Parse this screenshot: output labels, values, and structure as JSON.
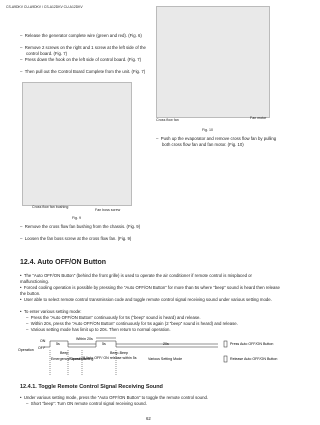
{
  "header": {
    "model": "CS-A9DKV CU-A9DKV / CS-A12DKV CU-A12DKV"
  },
  "steps_top": [
    "Release the generator complete wire (green and red). (Fig. 6)",
    "Remove 2 screws on the right and 1 screw at the left side of the control board. (Fig. 7)",
    "Press down the hook on the left side of control board. (Fig. 7)",
    "Then pull out the Control Board Complete from the unit. (Fig. 7)"
  ],
  "fig10": {
    "labels": [
      "Cross flow fan",
      "Fan motor"
    ],
    "caption": "Fig. 10",
    "step": "Push up the evaporator and remove cross flow fan by pulling both cross flow fan and fan motor. (Fig. 10)"
  },
  "fig9": {
    "labels": [
      "Cross flow fan bushing",
      "Fan boss screw"
    ],
    "caption": "Fig. 9",
    "steps": [
      "Remove the cross flow fan bushing from the chassis. (Fig. 9)",
      "Loosen the fan boss screw at the cross flow fan. (Fig. 9)"
    ]
  },
  "section": {
    "title": "12.4.   Auto OFF/ON Button",
    "bullets": [
      "The “Auto OFF/ON Button” (behind the front grille) is used to operate the air conditioner if remote control is misplaced or malfunctioning.",
      "Forced cooling operation is possible by pressing the “Auto OFF/ON Button” for more than 5s where “beep” sound is heard then release the button.",
      "User able to select remote control transmission code and toggle remote control signal receiving sound under various setting mode.",
      "To enter various setting mode:"
    ],
    "sub_steps": [
      "Press the “Auto OFF/ON Button” continuously for 5s (“beep” sound is heard) and release.",
      "Within 20s, press the “Auto OFF/ON Button” continuously for 5s again (2 “beep” sound is heard) and release.",
      "Various setting mode has limit up to 20s. Then return to normal operation."
    ]
  },
  "diagram": {
    "on": "ON",
    "off": "OFF",
    "operation": "Operation",
    "t1": "5s",
    "within": "Within 20s",
    "t2": "5s",
    "t3": "20s",
    "beep": "Beep",
    "beep2": "Beep-Beep",
    "modes": [
      "Emergency Operation",
      "Forced Cooling",
      "If Auto OFF/ ON release within 5s",
      "Various Setting Mode"
    ],
    "legend": [
      "Press Auto OFF/ON Button",
      "Release Auto OFF/ON Button"
    ]
  },
  "subsection": {
    "title": "12.4.1.   Toggle Remote Control Signal Receiving Sound",
    "bullet": "Under various setting mode, press the “Auto OFF/ON Button” to toggle the remote control sound.",
    "sub": "Short “beep”: Turn ON remote control signal receiving sound."
  },
  "page_number": "62"
}
